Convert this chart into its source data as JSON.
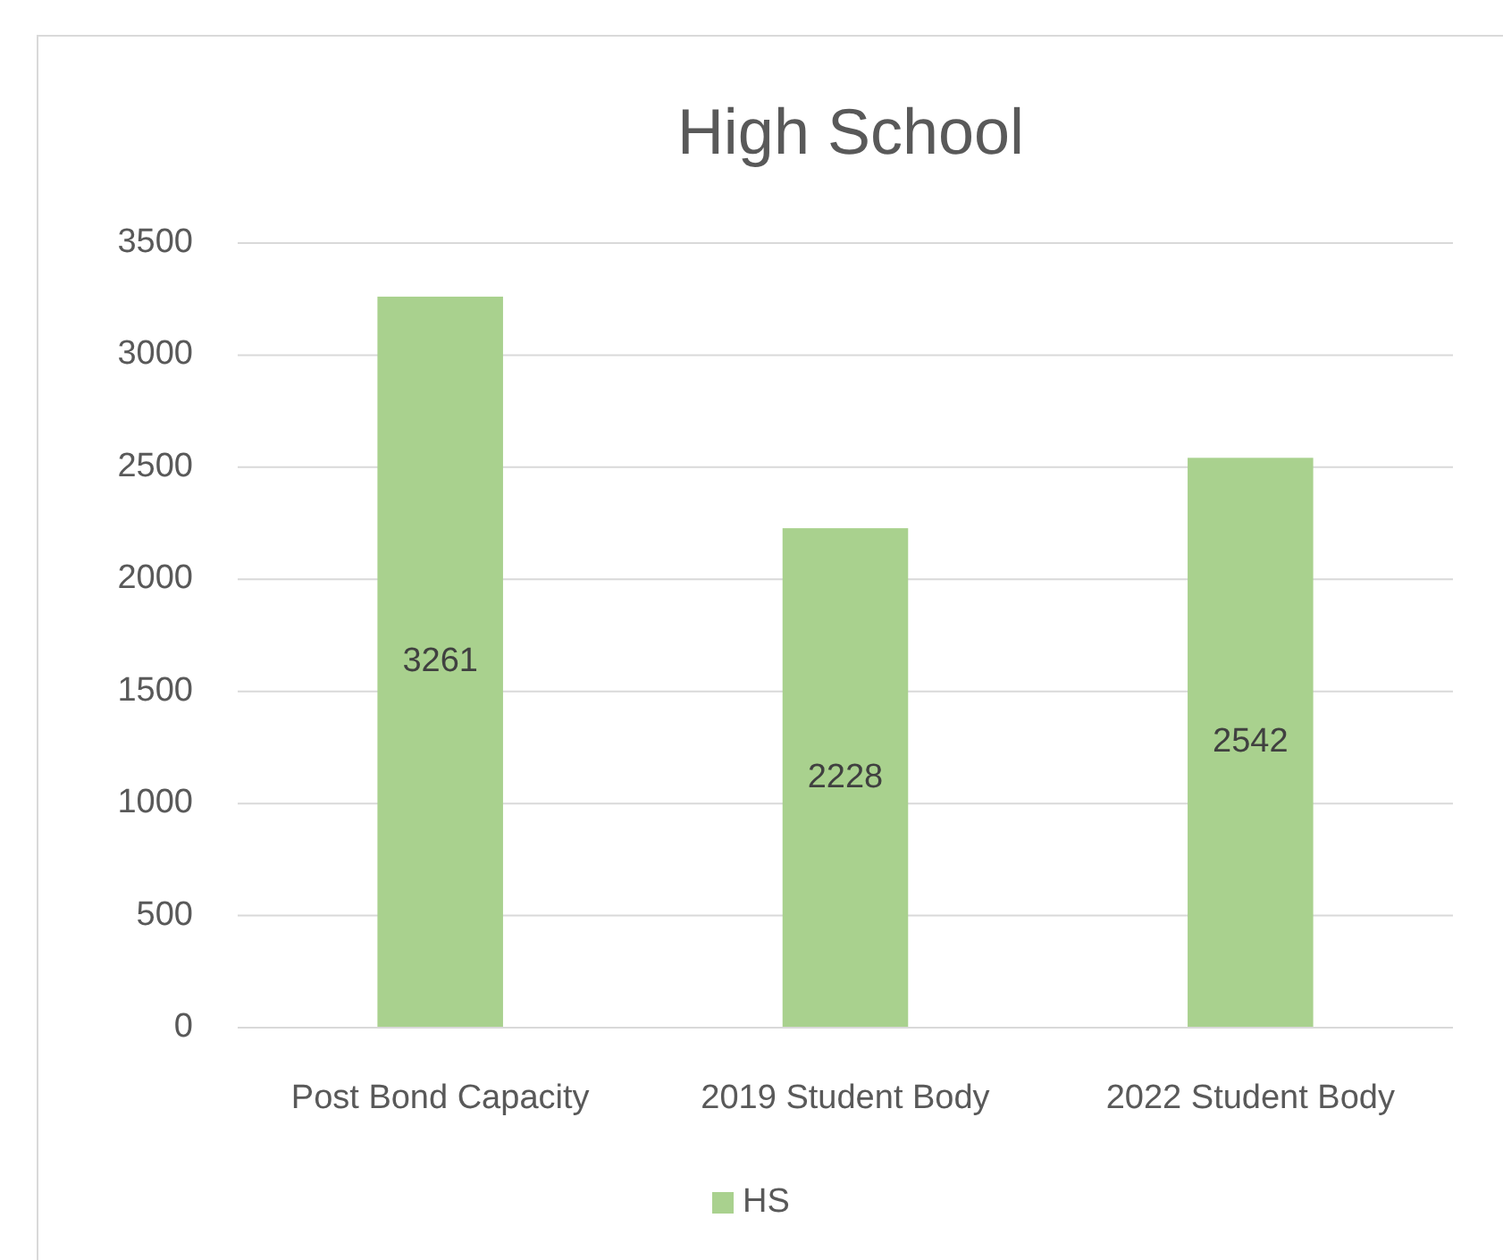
{
  "chart_data": {
    "type": "bar",
    "title": "High School",
    "categories": [
      "Post Bond Capacity",
      "2019 Student Body",
      "2022 Student Body"
    ],
    "series": [
      {
        "name": "HS",
        "color": "#a9d18e",
        "values": [
          3261,
          2228,
          2542
        ]
      }
    ],
    "ylim": [
      0,
      3500
    ],
    "yticks": [
      0,
      500,
      1000,
      1500,
      2000,
      2500,
      3000,
      3500
    ],
    "grid": "y",
    "legend": "bottom",
    "data_labels": true
  }
}
